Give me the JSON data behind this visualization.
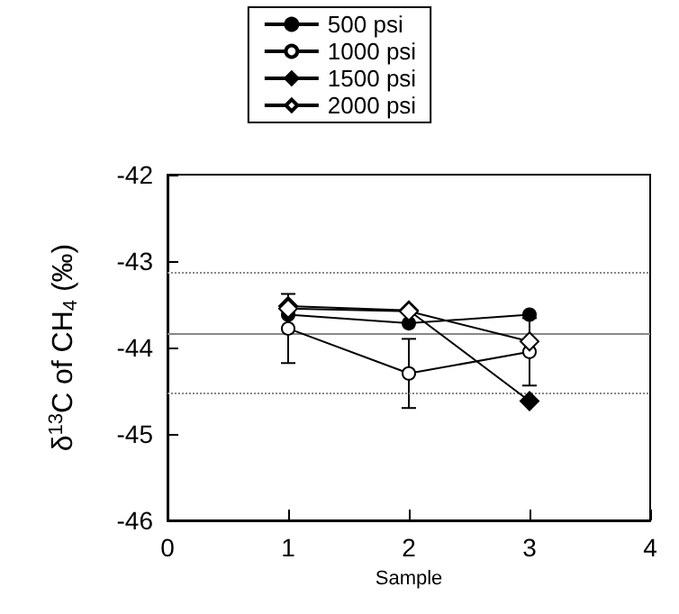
{
  "chart_data": {
    "type": "line",
    "xlabel": "Sample",
    "ylabel": "δ$^{13}$C of CH$_{4}$ (‰)",
    "x": [
      1,
      2,
      3
    ],
    "series": [
      {
        "name": "500 psi",
        "color": "#000000",
        "marker": "circle",
        "values": [
          -43.62,
          -43.72,
          -43.62
        ]
      },
      {
        "name": "1000 psi",
        "color": "#000000",
        "marker": "circle",
        "values": [
          -43.78,
          -44.3,
          -44.05
        ],
        "errors": [
          0.4,
          0.4,
          0.39
        ]
      },
      {
        "name": "1500 psi",
        "color": "#000000",
        "marker": "diamond",
        "values": [
          -43.52,
          -43.57,
          -44.62
        ]
      },
      {
        "name": "2000 psi",
        "color": "#000000",
        "marker": "diamond",
        "values": [
          -43.55,
          -43.58,
          -43.93
        ]
      }
    ],
    "xlim": [
      0,
      4
    ],
    "xticks": [
      0,
      1,
      2,
      3,
      4
    ],
    "ylim": [
      -46,
      -42
    ],
    "yticks": [
      -46,
      -45,
      -44,
      -43,
      -42
    ],
    "ref_lines": [
      {
        "axis": "y",
        "value": -43.83,
        "color": "#888888",
        "line_style": "solid"
      },
      {
        "axis": "y",
        "value": -43.14,
        "color": "#888888",
        "line_style": "dotted"
      },
      {
        "axis": "y",
        "value": -44.52,
        "color": "#888888",
        "line_style": "dotted"
      }
    ],
    "legend": "top",
    "grid": false,
    "line_style": "solid"
  }
}
